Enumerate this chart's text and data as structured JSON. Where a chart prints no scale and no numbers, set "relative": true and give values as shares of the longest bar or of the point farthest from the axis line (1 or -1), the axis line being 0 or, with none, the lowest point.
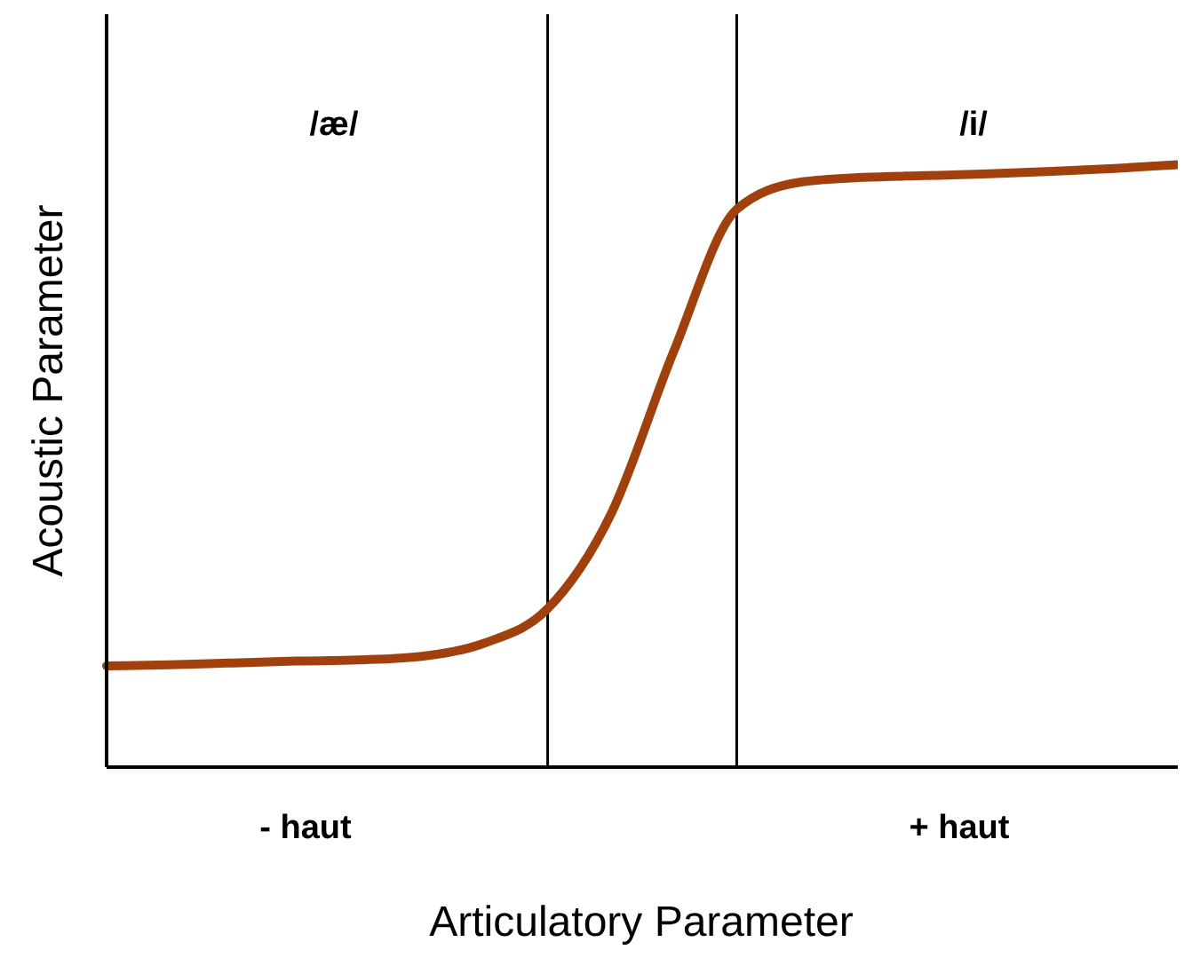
{
  "chart_data": {
    "type": "line",
    "relative": true,
    "xlabel": "Articulatory Parameter",
    "ylabel": "Acoustic Parameter",
    "categories": [
      null,
      null,
      null,
      null,
      null,
      null,
      null,
      null,
      null,
      null,
      null,
      null,
      null,
      null,
      null,
      null,
      null,
      null
    ],
    "series": [
      {
        "color": "#a0410d",
        "values": [
          0.168,
          0.17,
          0.173,
          0.176,
          0.178,
          0.184,
          0.206,
          0.263,
          0.419,
          0.69,
          0.926,
          0.971,
          0.979,
          0.982,
          0.985,
          0.989,
          0.994,
          1
        ]
      }
    ],
    "annotations": [
      "/æ/",
      "/i/",
      "- haut",
      "+ haut"
    ],
    "marker": "none",
    "line_style": "solid"
  }
}
